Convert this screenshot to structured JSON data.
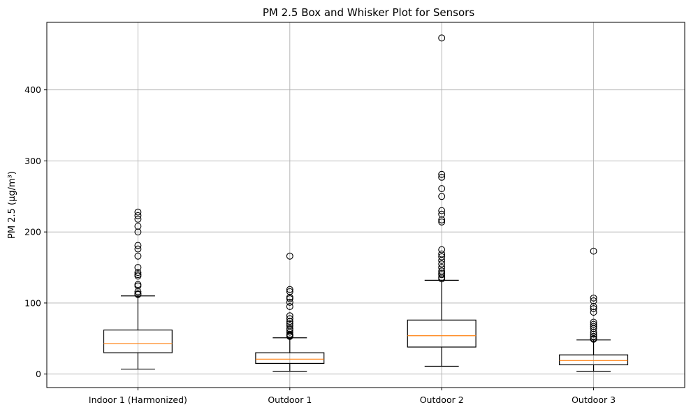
{
  "chart_data": {
    "type": "box",
    "title": "PM 2.5 Box and Whisker Plot for Sensors",
    "xlabel": "",
    "ylabel": "PM 2.5 (μg/m³)",
    "ylim": [
      -19,
      495
    ],
    "yticks": [
      0,
      100,
      200,
      300,
      400
    ],
    "grid": true,
    "categories": [
      "Indoor 1 (Harmonized)",
      "Outdoor 1",
      "Outdoor 2",
      "Outdoor 3"
    ],
    "boxes": [
      {
        "name": "Indoor 1 (Harmonized)",
        "whisker_low": 7,
        "q1": 30,
        "median": 43,
        "q3": 62,
        "whisker_high": 110,
        "outliers": [
          228,
          223,
          218,
          208,
          200,
          181,
          176,
          166,
          150,
          143,
          140,
          138,
          126,
          124,
          116,
          113,
          112
        ]
      },
      {
        "name": "Outdoor 1",
        "whisker_low": 4,
        "q1": 15,
        "median": 21,
        "q3": 30,
        "whisker_high": 51,
        "outliers": [
          166,
          119,
          116,
          108,
          106,
          101,
          95,
          82,
          78,
          74,
          71,
          68,
          64,
          62,
          59,
          56,
          55,
          54,
          53
        ]
      },
      {
        "name": "Outdoor 2",
        "whisker_low": 11,
        "q1": 38,
        "median": 54,
        "q3": 76,
        "whisker_high": 132,
        "outliers": [
          473,
          281,
          277,
          261,
          250,
          230,
          225,
          217,
          214,
          175,
          169,
          165,
          160,
          155,
          150,
          145,
          142,
          140,
          136,
          134
        ]
      },
      {
        "name": "Outdoor 3",
        "whisker_low": 4,
        "q1": 13,
        "median": 19,
        "q3": 27,
        "whisker_high": 48,
        "outliers": [
          173,
          107,
          103,
          95,
          92,
          87,
          73,
          70,
          67,
          64,
          59,
          56,
          53,
          50,
          49
        ]
      }
    ]
  }
}
